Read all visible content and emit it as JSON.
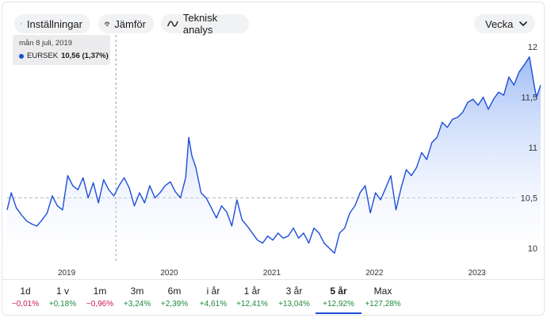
{
  "toolbar": {
    "settings_label": "Inställningar",
    "compare_label": "Jämför",
    "technical_label": "Teknisk analys",
    "period_label": "Vecka"
  },
  "tooltip": {
    "date": "mån 8 juli, 2019",
    "series": "EURSEK",
    "value": "10,56 (1,37%)"
  },
  "colors": {
    "line": "#1d4ed8",
    "fill_top": "#8fb1f5",
    "negative": "#c6185b",
    "positive": "#1f8b3a"
  },
  "chart_data": {
    "type": "area",
    "ylim": [
      9.85,
      12.15
    ],
    "yticks": [
      "12",
      "11,5",
      "11",
      "10,5",
      "10"
    ],
    "ytick_values": [
      12,
      11.5,
      11,
      10.5,
      10
    ],
    "xticks": [
      "2019",
      "2020",
      "2021",
      "2022",
      "2023"
    ],
    "xtick_years": [
      2019,
      2020,
      2021,
      2022,
      2023
    ],
    "reference_line": 10.5,
    "hover_year": 2019.52,
    "series": [
      {
        "name": "EURSEK",
        "x": [
          2018.46,
          2018.5,
          2018.55,
          2018.6,
          2018.65,
          2018.7,
          2018.75,
          2018.8,
          2018.85,
          2018.9,
          2018.95,
          2019.0,
          2019.05,
          2019.1,
          2019.15,
          2019.2,
          2019.25,
          2019.3,
          2019.35,
          2019.4,
          2019.45,
          2019.5,
          2019.52,
          2019.55,
          2019.6,
          2019.65,
          2019.7,
          2019.75,
          2019.8,
          2019.85,
          2019.9,
          2019.95,
          2020.0,
          2020.05,
          2020.1,
          2020.15,
          2020.2,
          2020.23,
          2020.26,
          2020.3,
          2020.35,
          2020.4,
          2020.45,
          2020.5,
          2020.55,
          2020.6,
          2020.65,
          2020.7,
          2020.75,
          2020.8,
          2020.85,
          2020.9,
          2020.95,
          2021.0,
          2021.05,
          2021.1,
          2021.15,
          2021.2,
          2021.25,
          2021.3,
          2021.35,
          2021.4,
          2021.45,
          2021.5,
          2021.55,
          2021.6,
          2021.65,
          2021.7,
          2021.75,
          2021.8,
          2021.85,
          2021.9,
          2021.95,
          2022.0,
          2022.05,
          2022.1,
          2022.15,
          2022.2,
          2022.25,
          2022.3,
          2022.35,
          2022.4,
          2022.45,
          2022.5,
          2022.55,
          2022.6,
          2022.65,
          2022.7,
          2022.75,
          2022.8,
          2022.85,
          2022.9,
          2022.95,
          2023.0,
          2023.05,
          2023.1,
          2023.15,
          2023.2,
          2023.25,
          2023.3,
          2023.35,
          2023.4,
          2023.45,
          2023.5,
          2023.55,
          2023.6,
          2023.62,
          2023.66
        ],
        "values": [
          10.38,
          10.55,
          10.4,
          10.33,
          10.27,
          10.24,
          10.22,
          10.28,
          10.35,
          10.52,
          10.42,
          10.38,
          10.72,
          10.62,
          10.58,
          10.7,
          10.5,
          10.65,
          10.45,
          10.68,
          10.58,
          10.52,
          10.56,
          10.62,
          10.7,
          10.6,
          10.42,
          10.55,
          10.45,
          10.62,
          10.5,
          10.55,
          10.62,
          10.66,
          10.56,
          10.5,
          10.7,
          11.1,
          10.92,
          10.8,
          10.55,
          10.5,
          10.4,
          10.3,
          10.42,
          10.36,
          10.22,
          10.48,
          10.28,
          10.22,
          10.15,
          10.08,
          10.05,
          10.12,
          10.08,
          10.15,
          10.1,
          10.12,
          10.2,
          10.1,
          10.15,
          10.05,
          10.2,
          10.15,
          10.05,
          10.0,
          9.95,
          10.15,
          10.2,
          10.35,
          10.42,
          10.55,
          10.62,
          10.35,
          10.55,
          10.48,
          10.6,
          10.72,
          10.38,
          10.6,
          10.78,
          10.72,
          10.8,
          10.95,
          10.88,
          11.05,
          11.1,
          11.25,
          11.2,
          11.28,
          11.3,
          11.35,
          11.45,
          11.48,
          11.42,
          11.5,
          11.38,
          11.48,
          11.55,
          11.52,
          11.7,
          11.62,
          11.75,
          11.82,
          11.9,
          11.6,
          11.5,
          11.62
        ]
      }
    ]
  },
  "ranges": [
    {
      "label": "1d",
      "change": "−0,01%",
      "sign": "neg"
    },
    {
      "label": "1 v",
      "change": "+0,18%",
      "sign": "pos"
    },
    {
      "label": "1m",
      "change": "−0,96%",
      "sign": "neg"
    },
    {
      "label": "3m",
      "change": "+3,24%",
      "sign": "pos"
    },
    {
      "label": "6m",
      "change": "+2,39%",
      "sign": "pos"
    },
    {
      "label": "i år",
      "change": "+4,61%",
      "sign": "pos"
    },
    {
      "label": "1 år",
      "change": "+12,41%",
      "sign": "pos"
    },
    {
      "label": "3 år",
      "change": "+13,04%",
      "sign": "pos"
    },
    {
      "label": "5 år",
      "change": "+12,92%",
      "sign": "pos",
      "active": true
    },
    {
      "label": "Max",
      "change": "+127,28%",
      "sign": "pos"
    }
  ]
}
